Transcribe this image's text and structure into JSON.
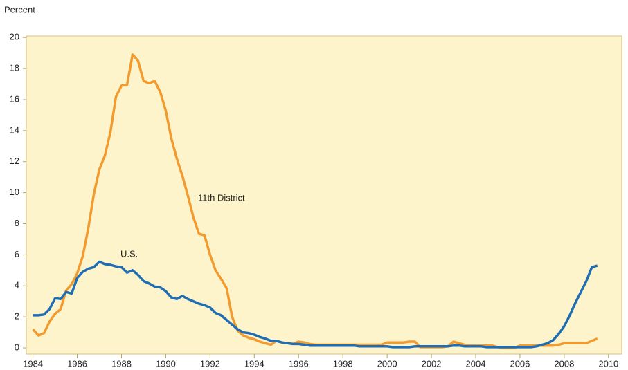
{
  "chart_data": {
    "type": "line",
    "y_label": "Percent",
    "xlim": [
      1983.7,
      2010.6
    ],
    "xticks": [
      1984,
      1986,
      1988,
      1990,
      1992,
      1994,
      1996,
      1998,
      2000,
      2002,
      2004,
      2006,
      2008,
      2010
    ],
    "ylim": [
      -0.4,
      20.1
    ],
    "yticks": [
      0,
      2,
      4,
      6,
      8,
      10,
      12,
      14,
      16,
      18,
      20
    ],
    "grid": false,
    "x": [
      1984,
      1984.25,
      1984.5,
      1984.75,
      1985,
      1985.25,
      1985.5,
      1985.75,
      1986,
      1986.25,
      1986.5,
      1986.75,
      1987,
      1987.25,
      1987.5,
      1987.75,
      1988,
      1988.25,
      1988.5,
      1988.75,
      1989,
      1989.25,
      1989.5,
      1989.75,
      1990,
      1990.25,
      1990.5,
      1990.75,
      1991,
      1991.25,
      1991.5,
      1991.75,
      1992,
      1992.25,
      1992.5,
      1992.75,
      1993,
      1993.25,
      1993.5,
      1993.75,
      1994,
      1994.25,
      1994.5,
      1994.75,
      1995,
      1995.25,
      1995.5,
      1995.75,
      1996,
      1996.25,
      1996.5,
      1996.75,
      1997,
      1997.25,
      1997.5,
      1997.75,
      1998,
      1998.25,
      1998.5,
      1998.75,
      1999,
      1999.25,
      1999.5,
      1999.75,
      2000,
      2000.25,
      2000.5,
      2000.75,
      2001,
      2001.25,
      2001.5,
      2001.75,
      2002,
      2002.25,
      2002.5,
      2002.75,
      2003,
      2003.25,
      2003.5,
      2003.75,
      2004,
      2004.25,
      2004.5,
      2004.75,
      2005,
      2005.25,
      2005.5,
      2005.75,
      2006,
      2006.25,
      2006.5,
      2006.75,
      2007,
      2007.25,
      2007.5,
      2007.75,
      2008,
      2008.25,
      2008.5,
      2008.75,
      2009,
      2009.25,
      2009.5
    ],
    "series": [
      {
        "name": "11th District",
        "color": "#f29a2e",
        "values": [
          1.2,
          0.8,
          0.95,
          1.7,
          2.2,
          2.5,
          3.7,
          4.1,
          4.8,
          5.9,
          7.7,
          9.9,
          11.5,
          12.4,
          13.9,
          16.2,
          16.9,
          16.95,
          18.9,
          18.5,
          17.2,
          17.05,
          17.2,
          16.5,
          15.3,
          13.5,
          12.2,
          11.1,
          9.8,
          8.4,
          7.35,
          7.25,
          6.0,
          5.0,
          4.45,
          3.85,
          2.0,
          1.1,
          0.8,
          0.65,
          0.55,
          0.4,
          0.3,
          0.2,
          0.45,
          0.35,
          0.3,
          0.25,
          0.4,
          0.35,
          0.25,
          0.2,
          0.2,
          0.2,
          0.2,
          0.2,
          0.2,
          0.2,
          0.2,
          0.2,
          0.2,
          0.2,
          0.2,
          0.2,
          0.35,
          0.35,
          0.35,
          0.35,
          0.4,
          0.4,
          0.05,
          0.05,
          0.05,
          0.05,
          0.05,
          0.1,
          0.4,
          0.3,
          0.2,
          0.15,
          0.15,
          0.15,
          0.15,
          0.15,
          0.05,
          0.0,
          0.0,
          0.0,
          0.15,
          0.15,
          0.15,
          0.15,
          0.15,
          0.15,
          0.15,
          0.2,
          0.3,
          0.3,
          0.3,
          0.3,
          0.3,
          0.45,
          0.6
        ]
      },
      {
        "name": "U.S.",
        "color": "#1f6db3",
        "values": [
          2.1,
          2.1,
          2.15,
          2.5,
          3.2,
          3.15,
          3.6,
          3.5,
          4.5,
          4.9,
          5.1,
          5.2,
          5.55,
          5.4,
          5.35,
          5.25,
          5.2,
          4.85,
          5.0,
          4.7,
          4.3,
          4.15,
          3.95,
          3.9,
          3.65,
          3.25,
          3.15,
          3.35,
          3.15,
          3.0,
          2.85,
          2.75,
          2.6,
          2.25,
          2.1,
          1.8,
          1.5,
          1.2,
          1.0,
          0.95,
          0.85,
          0.7,
          0.6,
          0.45,
          0.45,
          0.35,
          0.3,
          0.25,
          0.25,
          0.2,
          0.15,
          0.15,
          0.15,
          0.15,
          0.15,
          0.15,
          0.15,
          0.15,
          0.15,
          0.1,
          0.1,
          0.1,
          0.1,
          0.1,
          0.1,
          0.05,
          0.05,
          0.05,
          0.05,
          0.1,
          0.1,
          0.1,
          0.1,
          0.1,
          0.1,
          0.1,
          0.15,
          0.15,
          0.1,
          0.1,
          0.1,
          0.1,
          0.05,
          0.05,
          0.05,
          0.05,
          0.05,
          0.05,
          0.05,
          0.05,
          0.05,
          0.1,
          0.2,
          0.3,
          0.5,
          0.9,
          1.4,
          2.1,
          2.9,
          3.6,
          4.3,
          5.2,
          5.3
        ]
      }
    ]
  }
}
